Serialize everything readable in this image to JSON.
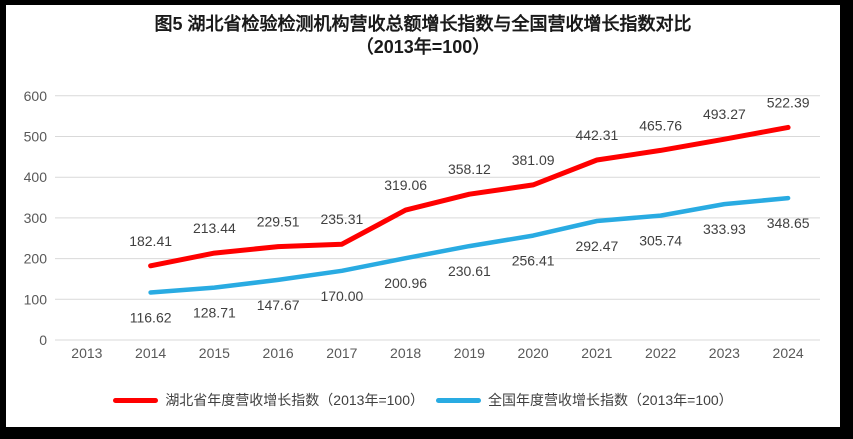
{
  "window": {
    "frame_color": "#000000",
    "background": "#ffffff"
  },
  "title": {
    "line1": "图5 湖北省检验检测机构营收总额增长指数与全国营收增长指数对比",
    "line2": "（2013年=100）"
  },
  "chart_data": {
    "type": "line",
    "title": "图5 湖北省检验检测机构营收总额增长指数与全国营收增长指数对比（2013年=100）",
    "categories": [
      "2013",
      "2014",
      "2015",
      "2016",
      "2017",
      "2018",
      "2019",
      "2020",
      "2021",
      "2022",
      "2023",
      "2024"
    ],
    "series": [
      {
        "key": "hubei",
        "name": "湖北省年度营收增长指数（2013年=100）",
        "color": "#FF0000",
        "label_position": "above",
        "values": [
          null,
          182.41,
          213.44,
          229.51,
          235.31,
          319.06,
          358.12,
          381.09,
          442.31,
          465.76,
          493.27,
          522.39
        ]
      },
      {
        "key": "national",
        "name": "全国年度营收增长指数（2013年=100）",
        "color": "#29ABE2",
        "label_position": "below",
        "values": [
          null,
          116.62,
          128.71,
          147.67,
          170.0,
          200.96,
          230.61,
          256.41,
          292.47,
          305.74,
          333.93,
          348.65
        ]
      }
    ],
    "xlabel": "",
    "ylabel": "",
    "ylim": [
      0,
      600
    ],
    "ytick_step": 100,
    "grid": true,
    "gridline_color": "#D9D9D9",
    "axis_label_color": "#595959",
    "data_label_color": "#404040",
    "value_decimals": 2,
    "legend_position": "bottom"
  }
}
